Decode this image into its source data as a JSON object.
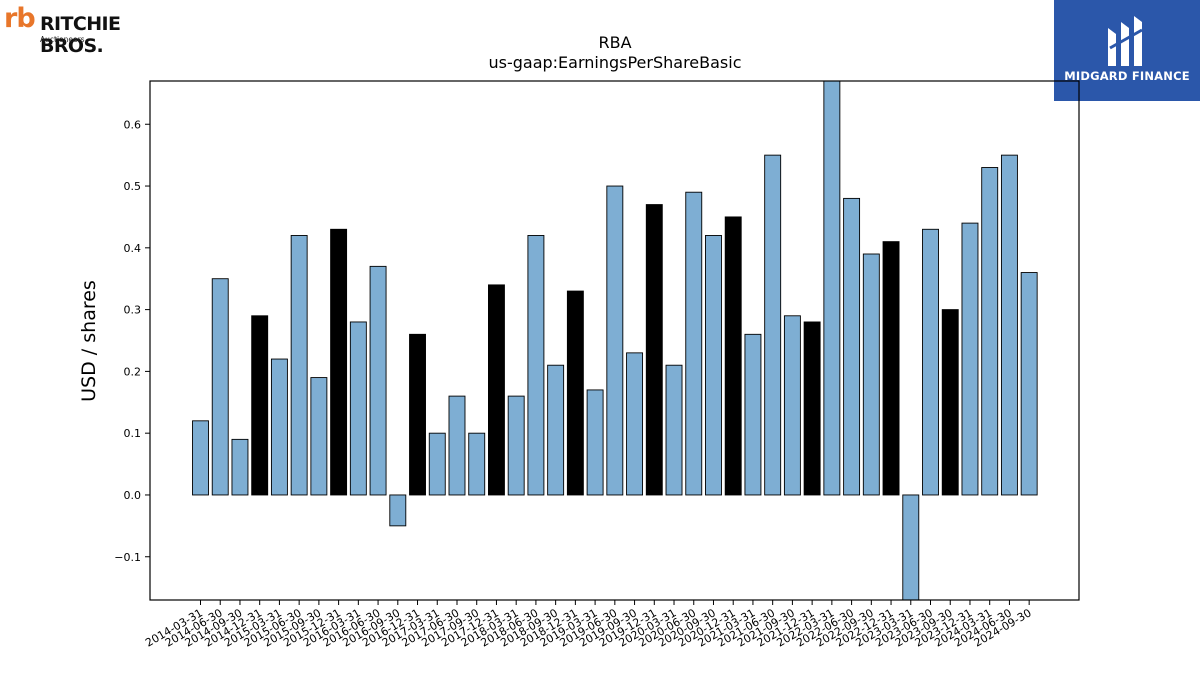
{
  "logos": {
    "left": {
      "mark": "rb",
      "name": "RITCHIE BROS.",
      "sub": "Auctioneers"
    },
    "right": {
      "name": "MIDGARD FINANCE",
      "color": "#2b57aa"
    }
  },
  "chart_data": {
    "type": "bar",
    "title": "RBA",
    "subtitle": "us-gaap:EarningsPerShareBasic",
    "ylabel": "USD / shares",
    "xlabel": "",
    "ylim": [
      -0.17,
      0.67
    ],
    "yticks": [
      -0.1,
      0.0,
      0.1,
      0.2,
      0.3,
      0.4,
      0.5,
      0.6
    ],
    "grid": false,
    "colors": {
      "quarter": "#7eaed3",
      "year_end": "#000000"
    },
    "categories": [
      "2014-03-31",
      "2014-06-30",
      "2014-09-30",
      "2014-12-31",
      "2015-03-31",
      "2015-06-30",
      "2015-09-30",
      "2015-12-31",
      "2016-03-31",
      "2016-06-30",
      "2016-09-30",
      "2016-12-31",
      "2017-03-31",
      "2017-06-30",
      "2017-09-30",
      "2017-12-31",
      "2018-03-31",
      "2018-06-30",
      "2018-09-30",
      "2018-12-31",
      "2019-03-31",
      "2019-06-30",
      "2019-09-30",
      "2019-12-31",
      "2020-03-31",
      "2020-06-30",
      "2020-09-30",
      "2020-12-31",
      "2021-03-31",
      "2021-06-30",
      "2021-09-30",
      "2021-12-31",
      "2022-03-31",
      "2022-06-30",
      "2022-09-30",
      "2022-12-31",
      "2023-03-31",
      "2023-06-30",
      "2023-09-30",
      "2023-12-31",
      "2024-03-31",
      "2024-06-30",
      "2024-09-30"
    ],
    "values": [
      0.12,
      0.35,
      0.09,
      0.29,
      0.22,
      0.42,
      0.19,
      0.43,
      0.28,
      0.37,
      -0.05,
      0.26,
      0.1,
      0.16,
      0.1,
      0.34,
      0.16,
      0.42,
      0.21,
      0.33,
      0.17,
      0.5,
      0.23,
      0.47,
      0.21,
      0.49,
      0.42,
      0.45,
      0.26,
      0.55,
      0.29,
      0.28,
      0.68,
      0.48,
      0.39,
      0.41,
      -0.18,
      0.43,
      0.3,
      0.44,
      0.53,
      0.55,
      0.36
    ],
    "year_end": [
      false,
      false,
      false,
      true,
      false,
      false,
      false,
      true,
      false,
      false,
      false,
      true,
      false,
      false,
      false,
      true,
      false,
      false,
      false,
      true,
      false,
      false,
      false,
      true,
      false,
      false,
      false,
      true,
      false,
      false,
      false,
      true,
      false,
      false,
      false,
      true,
      false,
      false,
      true,
      false,
      false,
      false,
      false
    ]
  }
}
